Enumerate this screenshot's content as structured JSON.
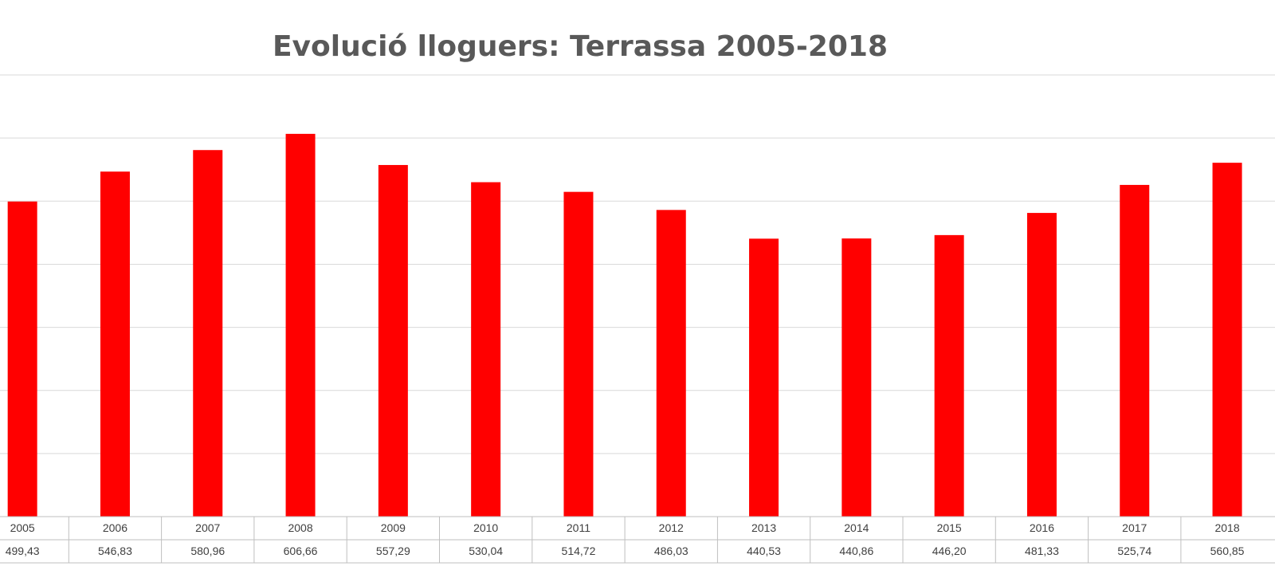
{
  "chart_data": {
    "type": "bar",
    "title": "Evolució lloguers:  Terrassa 2005-2018",
    "categories": [
      "2005",
      "2006",
      "2007",
      "2008",
      "2009",
      "2010",
      "2011",
      "2012",
      "2013",
      "2014",
      "2015",
      "2016",
      "2017",
      "2018"
    ],
    "values": [
      499.43,
      546.83,
      580.96,
      606.66,
      557.29,
      530.04,
      514.72,
      486.03,
      440.53,
      440.86,
      446.2,
      481.33,
      525.74,
      560.85
    ],
    "value_labels": [
      "499,43",
      "546,83",
      "580,96",
      "606,66",
      "557,29",
      "530,04",
      "514,72",
      "486,03",
      "440,53",
      "440,86",
      "446,20",
      "481,33",
      "525,74",
      "560,85"
    ],
    "ylim": [
      0,
      700
    ],
    "grid": true,
    "bar_color": "#ff0000",
    "gridline_color": "#d9d9d9",
    "table_border_color": "#bfbfbf",
    "title_color": "#595959",
    "xlabel": "",
    "ylabel": ""
  }
}
